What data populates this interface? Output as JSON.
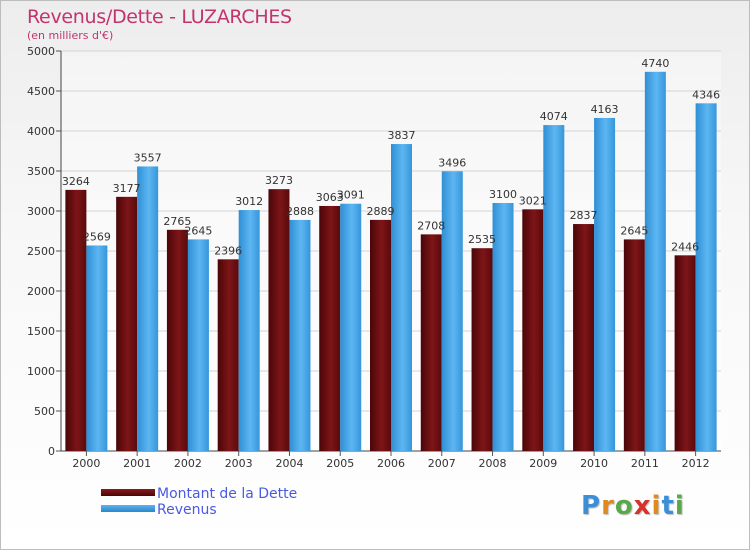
{
  "header": {
    "title": "Revenus/Dette - LUZARCHES",
    "subtitle": "(en milliers d'€)"
  },
  "legend": {
    "items": [
      {
        "label": "Montant de la Dette",
        "color": "#6b0f12"
      },
      {
        "label": "Revenus",
        "color": "#3e9ee0"
      }
    ]
  },
  "logo": {
    "letters": [
      "P",
      "r",
      "o",
      "x",
      "i",
      "t",
      "i"
    ],
    "colors": [
      "#3a8fd6",
      "#e08a1e",
      "#5aa84a",
      "#d6322e",
      "#e08a1e",
      "#3a8fd6",
      "#5aa84a"
    ]
  },
  "chart_data": {
    "type": "bar",
    "categories": [
      "2000",
      "2001",
      "2002",
      "2003",
      "2004",
      "2005",
      "2006",
      "2007",
      "2008",
      "2009",
      "2010",
      "2011",
      "2012"
    ],
    "series": [
      {
        "name": "Montant de la Dette",
        "color": "#6b0f12",
        "values": [
          3264,
          3177,
          2765,
          2396,
          3273,
          3063,
          2889,
          2708,
          2535,
          3021,
          2837,
          2645,
          2446
        ]
      },
      {
        "name": "Revenus",
        "color": "#3e9ee0",
        "values": [
          2569,
          3557,
          2645,
          3012,
          2888,
          3091,
          3837,
          3496,
          3100,
          4074,
          4163,
          4740,
          4346
        ]
      }
    ],
    "ylim": [
      0,
      5000
    ],
    "yticks": [
      0,
      500,
      1000,
      1500,
      2000,
      2500,
      3000,
      3500,
      4000,
      4500,
      5000
    ],
    "grid": true,
    "xlabel": "",
    "ylabel": ""
  }
}
